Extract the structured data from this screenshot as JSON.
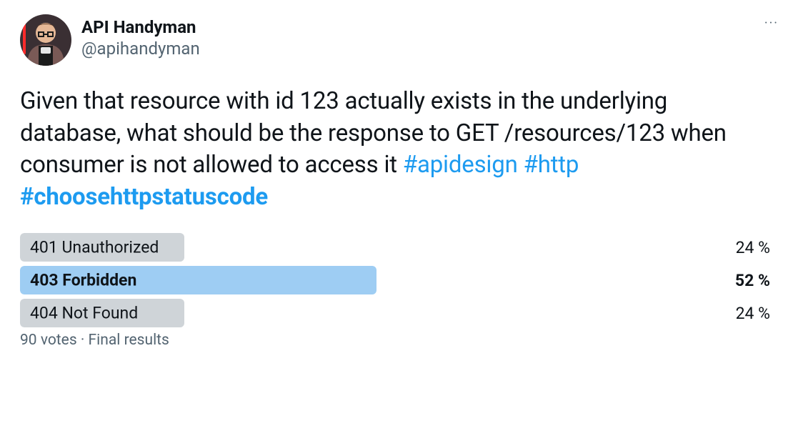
{
  "author": {
    "display_name": "API Handyman",
    "handle": "@apihandyman"
  },
  "more_glyph": "···",
  "tweet": {
    "text_before": "Given that resource with id 123 actually exists in the underlying database, what should be the response to GET /resources/123 when consumer is not allowed to access it ",
    "hashtags": [
      {
        "text": "#apidesign",
        "bold": false
      },
      {
        "text": "#http",
        "bold": false
      },
      {
        "text": "#choosehttpstatuscode",
        "bold": true
      }
    ]
  },
  "poll": {
    "options": [
      {
        "label": "401 Unauthorized",
        "pct_text": "24 %",
        "pct": 24,
        "winner": false
      },
      {
        "label": "403 Forbidden",
        "pct_text": "52 %",
        "pct": 52,
        "winner": true
      },
      {
        "label": "404 Not Found",
        "pct_text": "24 %",
        "pct": 24,
        "winner": false
      }
    ],
    "footer": "90 votes · Final results",
    "colors": {
      "bar_default": "#cfd4d8",
      "bar_winner": "#9ecdf3",
      "track_bg": "#ffffff"
    }
  },
  "colors": {
    "text": "#0f1419",
    "muted": "#536471",
    "link": "#1d9bf0",
    "bg": "#ffffff"
  },
  "avatar_svg": {
    "bg": "#3a2f33",
    "jacket": "#7a5a56",
    "shirt_dark": "#1c1c1c",
    "shirt_light": "#e8e8e8",
    "skin": "#e6b896",
    "hair": "#5b3a24",
    "glasses": "#1a1a1a",
    "saber": "#ff2b2b"
  }
}
